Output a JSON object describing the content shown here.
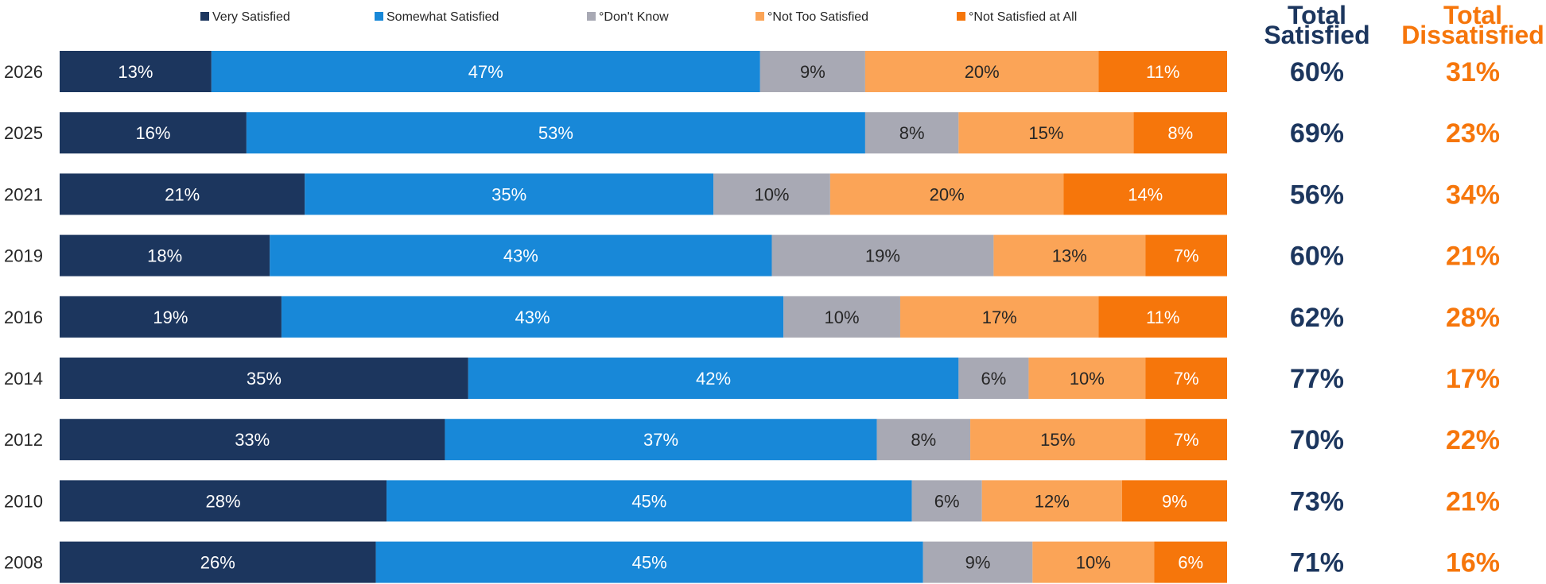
{
  "chart_data": {
    "type": "bar",
    "orientation": "horizontal",
    "stacked": true,
    "title": "",
    "categories": [
      "2026",
      "2025",
      "2021",
      "2019",
      "2016",
      "2014",
      "2012",
      "2010",
      "2008"
    ],
    "series": [
      {
        "name": "Very Satisfied",
        "color": "#1c365e",
        "label_color": "#ffffff",
        "values": [
          13,
          16,
          21,
          18,
          19,
          35,
          33,
          28,
          26
        ]
      },
      {
        "name": "Somewhat Satisfied",
        "color": "#1888d8",
        "label_color": "#ffffff",
        "values": [
          47,
          53,
          35,
          43,
          43,
          42,
          37,
          45,
          45
        ]
      },
      {
        "name": "°Don't Know",
        "color": "#a8a9b4",
        "label_color": "#262626",
        "values": [
          9,
          8,
          10,
          19,
          10,
          6,
          8,
          6,
          9
        ]
      },
      {
        "name": "°Not Too Satisfied",
        "color": "#fba457",
        "label_color": "#262626",
        "values": [
          20,
          15,
          20,
          13,
          17,
          10,
          15,
          12,
          10
        ]
      },
      {
        "name": "°Not Satisfied at All",
        "color": "#f6760b",
        "label_color": "#ffffff",
        "values": [
          11,
          8,
          14,
          7,
          11,
          7,
          7,
          9,
          6
        ]
      }
    ],
    "legend_position": "top",
    "side_columns": [
      {
        "header": [
          "Total",
          "Satisfied"
        ],
        "color": "#1c365e",
        "values": [
          "60%",
          "69%",
          "56%",
          "60%",
          "62%",
          "77%",
          "70%",
          "73%",
          "71%"
        ]
      },
      {
        "header": [
          "Total",
          "Dissatisfied"
        ],
        "color": "#f6760b",
        "values": [
          "31%",
          "23%",
          "34%",
          "21%",
          "28%",
          "17%",
          "22%",
          "21%",
          "16%"
        ]
      }
    ]
  }
}
